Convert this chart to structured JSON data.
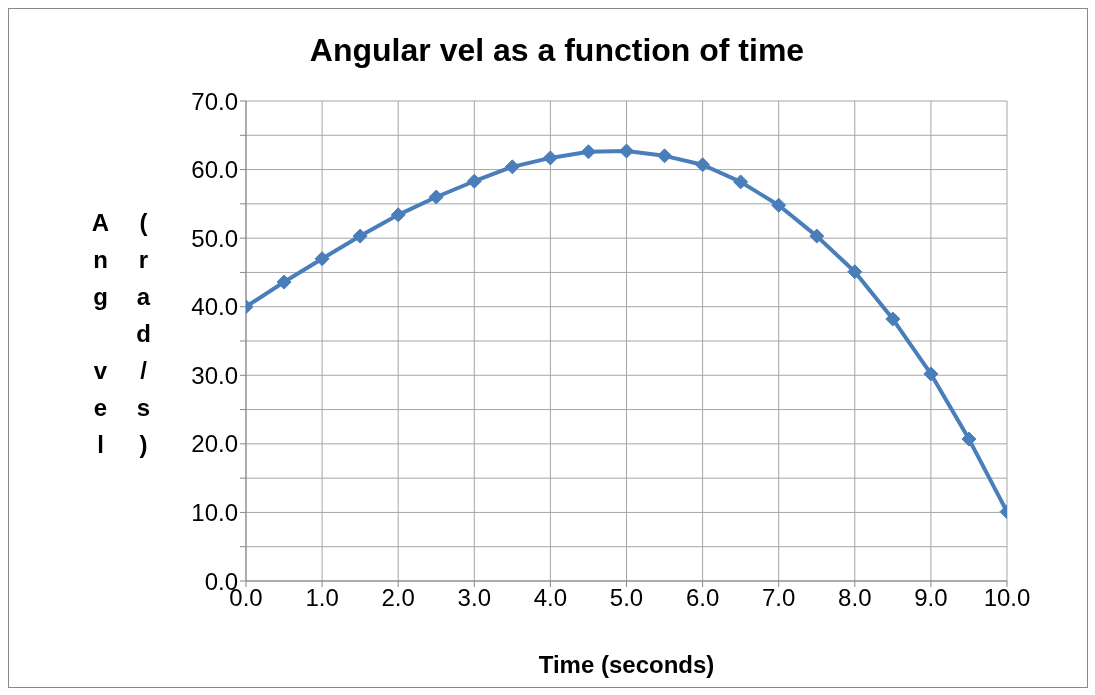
{
  "chart_data": {
    "type": "line",
    "title": "Angular vel as a function of time",
    "xlabel": "Time (seconds)",
    "ylabel": "Ang vel (rad/s)",
    "x": [
      0,
      0.5,
      1,
      1.5,
      2,
      2.5,
      3,
      3.5,
      4,
      4.5,
      5,
      5.5,
      6,
      6.5,
      7,
      7.5,
      8,
      8.5,
      9,
      9.5,
      10
    ],
    "series": [
      {
        "color": "#4a7ebb",
        "values": [
          40,
          43.6,
          47,
          50.3,
          53.4,
          56,
          58.3,
          60.4,
          61.7,
          62.6,
          62.7,
          62,
          60.7,
          58.2,
          54.8,
          50.3,
          45.1,
          38.2,
          30.2,
          20.7,
          10.1
        ]
      }
    ],
    "xlim": [
      0,
      10
    ],
    "xticks": [
      {
        "value": 0,
        "label": "0.0"
      },
      {
        "value": 1,
        "label": "1.0"
      },
      {
        "value": 2,
        "label": "2.0"
      },
      {
        "value": 3,
        "label": "3.0"
      },
      {
        "value": 4,
        "label": "4.0"
      },
      {
        "value": 5,
        "label": "5.0"
      },
      {
        "value": 6,
        "label": "6.0"
      },
      {
        "value": 7,
        "label": "7.0"
      },
      {
        "value": 8,
        "label": "8.0"
      },
      {
        "value": 9,
        "label": "9.0"
      },
      {
        "value": 10,
        "label": "10.0"
      }
    ],
    "ylim": [
      0,
      70
    ],
    "yticks": [
      {
        "value": 0,
        "label": "0.0"
      },
      {
        "value": 5,
        "label": null
      },
      {
        "value": 10,
        "label": "10.0"
      },
      {
        "value": 15,
        "label": null
      },
      {
        "value": 20,
        "label": "20.0"
      },
      {
        "value": 25,
        "label": null
      },
      {
        "value": 30,
        "label": "30.0"
      },
      {
        "value": 35,
        "label": null
      },
      {
        "value": 40,
        "label": "40.0"
      },
      {
        "value": 45,
        "label": null
      },
      {
        "value": 50,
        "label": "50.0"
      },
      {
        "value": 55,
        "label": null
      },
      {
        "value": 60,
        "label": "60.0"
      },
      {
        "value": 65,
        "label": null
      },
      {
        "value": 70,
        "label": "70.0"
      }
    ],
    "grid": true,
    "marker": "diamond",
    "line_style": "solid"
  }
}
